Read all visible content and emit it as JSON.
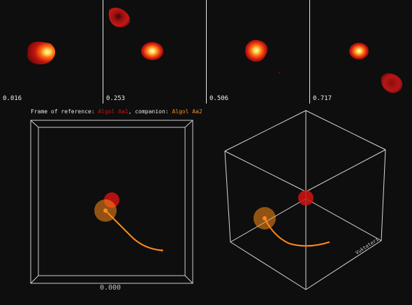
{
  "panels": [
    {
      "phase": "0.016"
    },
    {
      "phase": "0.253"
    },
    {
      "phase": "0.506"
    },
    {
      "phase": "0.717"
    }
  ],
  "reference": {
    "prefix": "Frame of reference: ",
    "primary": "Algol Aa1",
    "mid": ", companion: ",
    "companion": "Algol Aa2"
  },
  "time_readout": "0.000",
  "cube_axis_label": "Vukteteri",
  "colors": {
    "primary": "#d11212",
    "companion": "#ff8a1a",
    "background": "#0e0e0e",
    "frame": "#d8d8d8",
    "time_text": "#b9c9a9"
  }
}
